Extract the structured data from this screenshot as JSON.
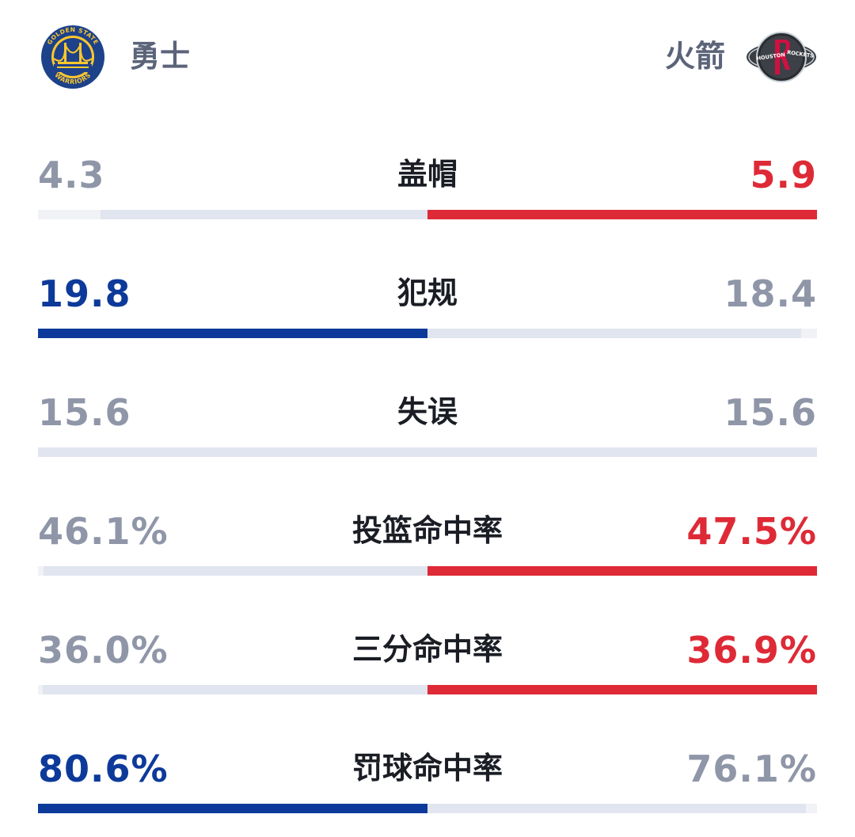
{
  "teams": {
    "home": {
      "name": "勇士",
      "logo_text_top": "GOLDEN STATE",
      "logo_text_bottom": "WARRIORS",
      "color": "#1d428a",
      "accent": "#ffc72c"
    },
    "away": {
      "name": "火箭",
      "logo_text_left": "HOUSTON",
      "logo_text_right": "ROCKETS",
      "color": "#ce1141"
    }
  },
  "colors": {
    "home_win": "#0d3a9a",
    "away_win": "#de2a36",
    "neutral": "#8f96a8",
    "track": "#f1f2f6",
    "track_opponent": "#e1e5f0"
  },
  "stats": [
    {
      "label": "盖帽",
      "home": "4.3",
      "away": "5.9",
      "home_share": 0.42,
      "away_share": 0.58,
      "leader": "away"
    },
    {
      "label": "犯规",
      "home": "19.8",
      "away": "18.4",
      "home_share": 0.52,
      "away_share": 0.48,
      "leader": "home"
    },
    {
      "label": "失误",
      "home": "15.6",
      "away": "15.6",
      "home_share": 0.5,
      "away_share": 0.5,
      "leader": "none"
    },
    {
      "label": "投篮命中率",
      "home": "46.1%",
      "away": "47.5%",
      "home_share": 0.493,
      "away_share": 0.507,
      "leader": "away"
    },
    {
      "label": "三分命中率",
      "home": "36.0%",
      "away": "36.9%",
      "home_share": 0.494,
      "away_share": 0.506,
      "leader": "away"
    },
    {
      "label": "罚球命中率",
      "home": "80.6%",
      "away": "76.1%",
      "home_share": 0.514,
      "away_share": 0.486,
      "leader": "home"
    }
  ]
}
